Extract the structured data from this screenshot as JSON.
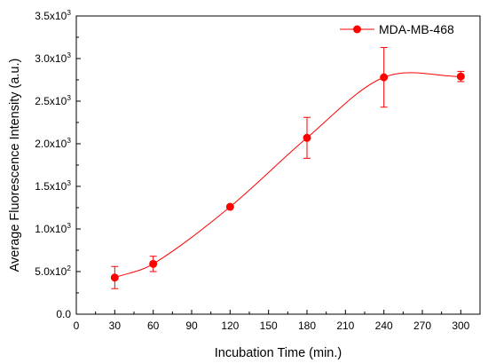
{
  "chart_data": {
    "type": "line",
    "title": "",
    "xlabel": "Incubation Time (min.)",
    "ylabel": "Average Fluorescence Intensity (a.u.)",
    "xlim": [
      0,
      315
    ],
    "ylim": [
      0,
      3500
    ],
    "x_ticks": [
      0,
      30,
      60,
      90,
      120,
      150,
      180,
      210,
      240,
      270,
      300
    ],
    "y_ticks": [
      {
        "value": 0,
        "base": "0.0",
        "exp": ""
      },
      {
        "value": 500,
        "base": "5.0x10",
        "exp": "2"
      },
      {
        "value": 1000,
        "base": "1.0x10",
        "exp": "3"
      },
      {
        "value": 1500,
        "base": "1.5x10",
        "exp": "3"
      },
      {
        "value": 2000,
        "base": "2.0x10",
        "exp": "3"
      },
      {
        "value": 2500,
        "base": "2.5x10",
        "exp": "3"
      },
      {
        "value": 3000,
        "base": "3.0x10",
        "exp": "3"
      },
      {
        "value": 3500,
        "base": "3.5x10",
        "exp": "3"
      }
    ],
    "grid": false,
    "legend_position": "top-right",
    "series": [
      {
        "name": "MDA-MB-468",
        "color": "#ff0000",
        "marker": "circle",
        "smooth_fit_line": true,
        "x": [
          30,
          60,
          120,
          180,
          240,
          300
        ],
        "y": [
          430,
          590,
          1260,
          2070,
          2780,
          2790
        ],
        "error": [
          130,
          90,
          0,
          240,
          350,
          60
        ]
      }
    ]
  }
}
